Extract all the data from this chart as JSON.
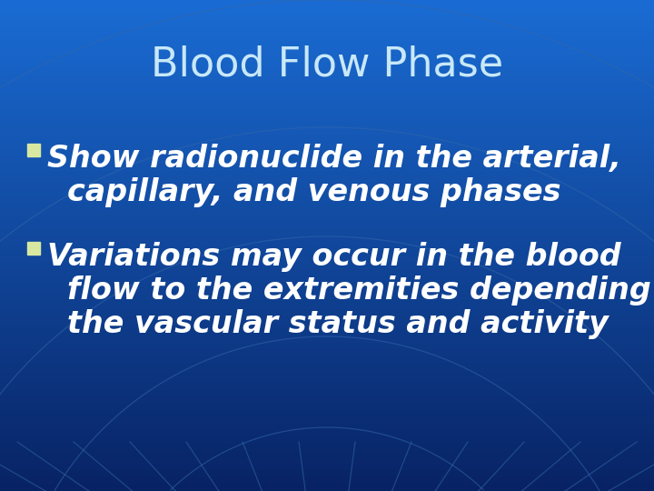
{
  "title": "Blood Flow Phase",
  "title_color": "#c8e8f8",
  "title_fontsize": 32,
  "bg_color_light": "#1a6cd4",
  "bg_color_dark": "#0a2f6e",
  "bullet_color": "#ffffff",
  "bullet_marker_color": "#d8e8a0",
  "bullet_fontsize": 24,
  "bullet1_line1": "Show radionuclide in the arterial,",
  "bullet1_line2": "capillary, and venous phases",
  "bullet2_line1": "Variations may occur in the blood",
  "bullet2_line2": "flow to the extremities depending on",
  "bullet2_line3": "the vascular status and activity",
  "grid_line_color": "#3366aa",
  "grid_line_alpha": 0.55
}
